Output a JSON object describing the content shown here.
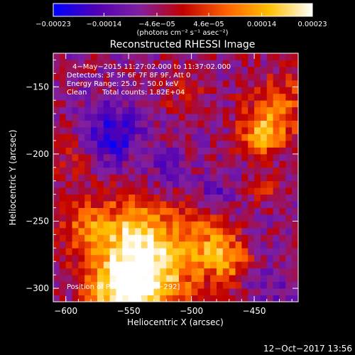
{
  "chart_data": {
    "type": "heatmap",
    "title": "Reconstructed RHESSI Image",
    "xlabel": "Heliocentric X (arcsec)",
    "ylabel": "Heliocentric Y (arcsec)",
    "xlim": [
      -610,
      -415
    ],
    "ylim": [
      -310,
      -125
    ],
    "x_ticks": [
      {
        "value": -600,
        "label": "−600"
      },
      {
        "value": -550,
        "label": "−550"
      },
      {
        "value": -500,
        "label": "−500"
      },
      {
        "value": -450,
        "label": "−450"
      }
    ],
    "y_ticks": [
      {
        "value": -150,
        "label": "−150"
      },
      {
        "value": -200,
        "label": "−200"
      },
      {
        "value": -250,
        "label": "−250"
      },
      {
        "value": -300,
        "label": "−300"
      }
    ],
    "colorbar": {
      "range": [
        -0.00023,
        0.00023
      ],
      "ticks": [
        {
          "value": -0.00023,
          "label": "−0.00023"
        },
        {
          "value": -0.00014,
          "label": "−0.00014"
        },
        {
          "value": -4.6e-05,
          "label": "−4.6e−05"
        },
        {
          "value": 4.6e-05,
          "label": "4.6e−05"
        },
        {
          "value": 0.00014,
          "label": "0.00014"
        },
        {
          "value": 0.00023,
          "label": "0.00023"
        }
      ],
      "unit_label": "(photons cm⁻² s⁻¹ asec⁻²)",
      "colormap": [
        "#0000ff",
        "#5000b4",
        "#8020a0",
        "#c00000",
        "#ff6000",
        "#ffc000",
        "#ffffff"
      ]
    },
    "annotations": {
      "time_range": "4−May−2015 11:27:02.000 to 11:37:02.000",
      "detectors": "Detectors: 3F 5F 6F 7F 8F 9F, Att 0",
      "energy_range": "Energy Range: 25.0 − 50.0 keV",
      "algorithm": "Clean",
      "total_counts": "Total counts: 1.82E+04",
      "peak_position": "Position of Peak = [−531,−292]"
    },
    "intensity_regions": [
      {
        "x": -532,
        "y": -292,
        "sigma": 26,
        "amp": 0.00021
      },
      {
        "x": -545,
        "y": -262,
        "sigma": 22,
        "amp": 0.00017
      },
      {
        "x": -585,
        "y": -255,
        "sigma": 15,
        "amp": 0.00012
      },
      {
        "x": -560,
        "y": -305,
        "sigma": 18,
        "amp": 0.00018
      },
      {
        "x": -487,
        "y": -265,
        "sigma": 16,
        "amp": 0.00012
      },
      {
        "x": -470,
        "y": -280,
        "sigma": 12,
        "amp": 0.00012
      },
      {
        "x": -445,
        "y": -185,
        "sigma": 12,
        "amp": 0.00016
      },
      {
        "x": -430,
        "y": -165,
        "sigma": 18,
        "amp": 0.00012
      },
      {
        "x": -440,
        "y": -225,
        "sigma": 8,
        "amp": 0.0001
      },
      {
        "x": -505,
        "y": -155,
        "sigma": 14,
        "amp": 5e-05
      },
      {
        "x": -598,
        "y": -200,
        "sigma": 16,
        "amp": 5e-05
      },
      {
        "x": -563,
        "y": -185,
        "sigma": 15,
        "amp": -0.00014
      },
      {
        "x": -520,
        "y": -210,
        "sigma": 10,
        "amp": -7e-05
      },
      {
        "x": -480,
        "y": -230,
        "sigma": 10,
        "amp": -7e-05
      },
      {
        "x": -440,
        "y": -300,
        "sigma": 12,
        "amp": -5e-05
      }
    ]
  },
  "footer": {
    "timestamp": "12−Oct−2017 13:56"
  }
}
